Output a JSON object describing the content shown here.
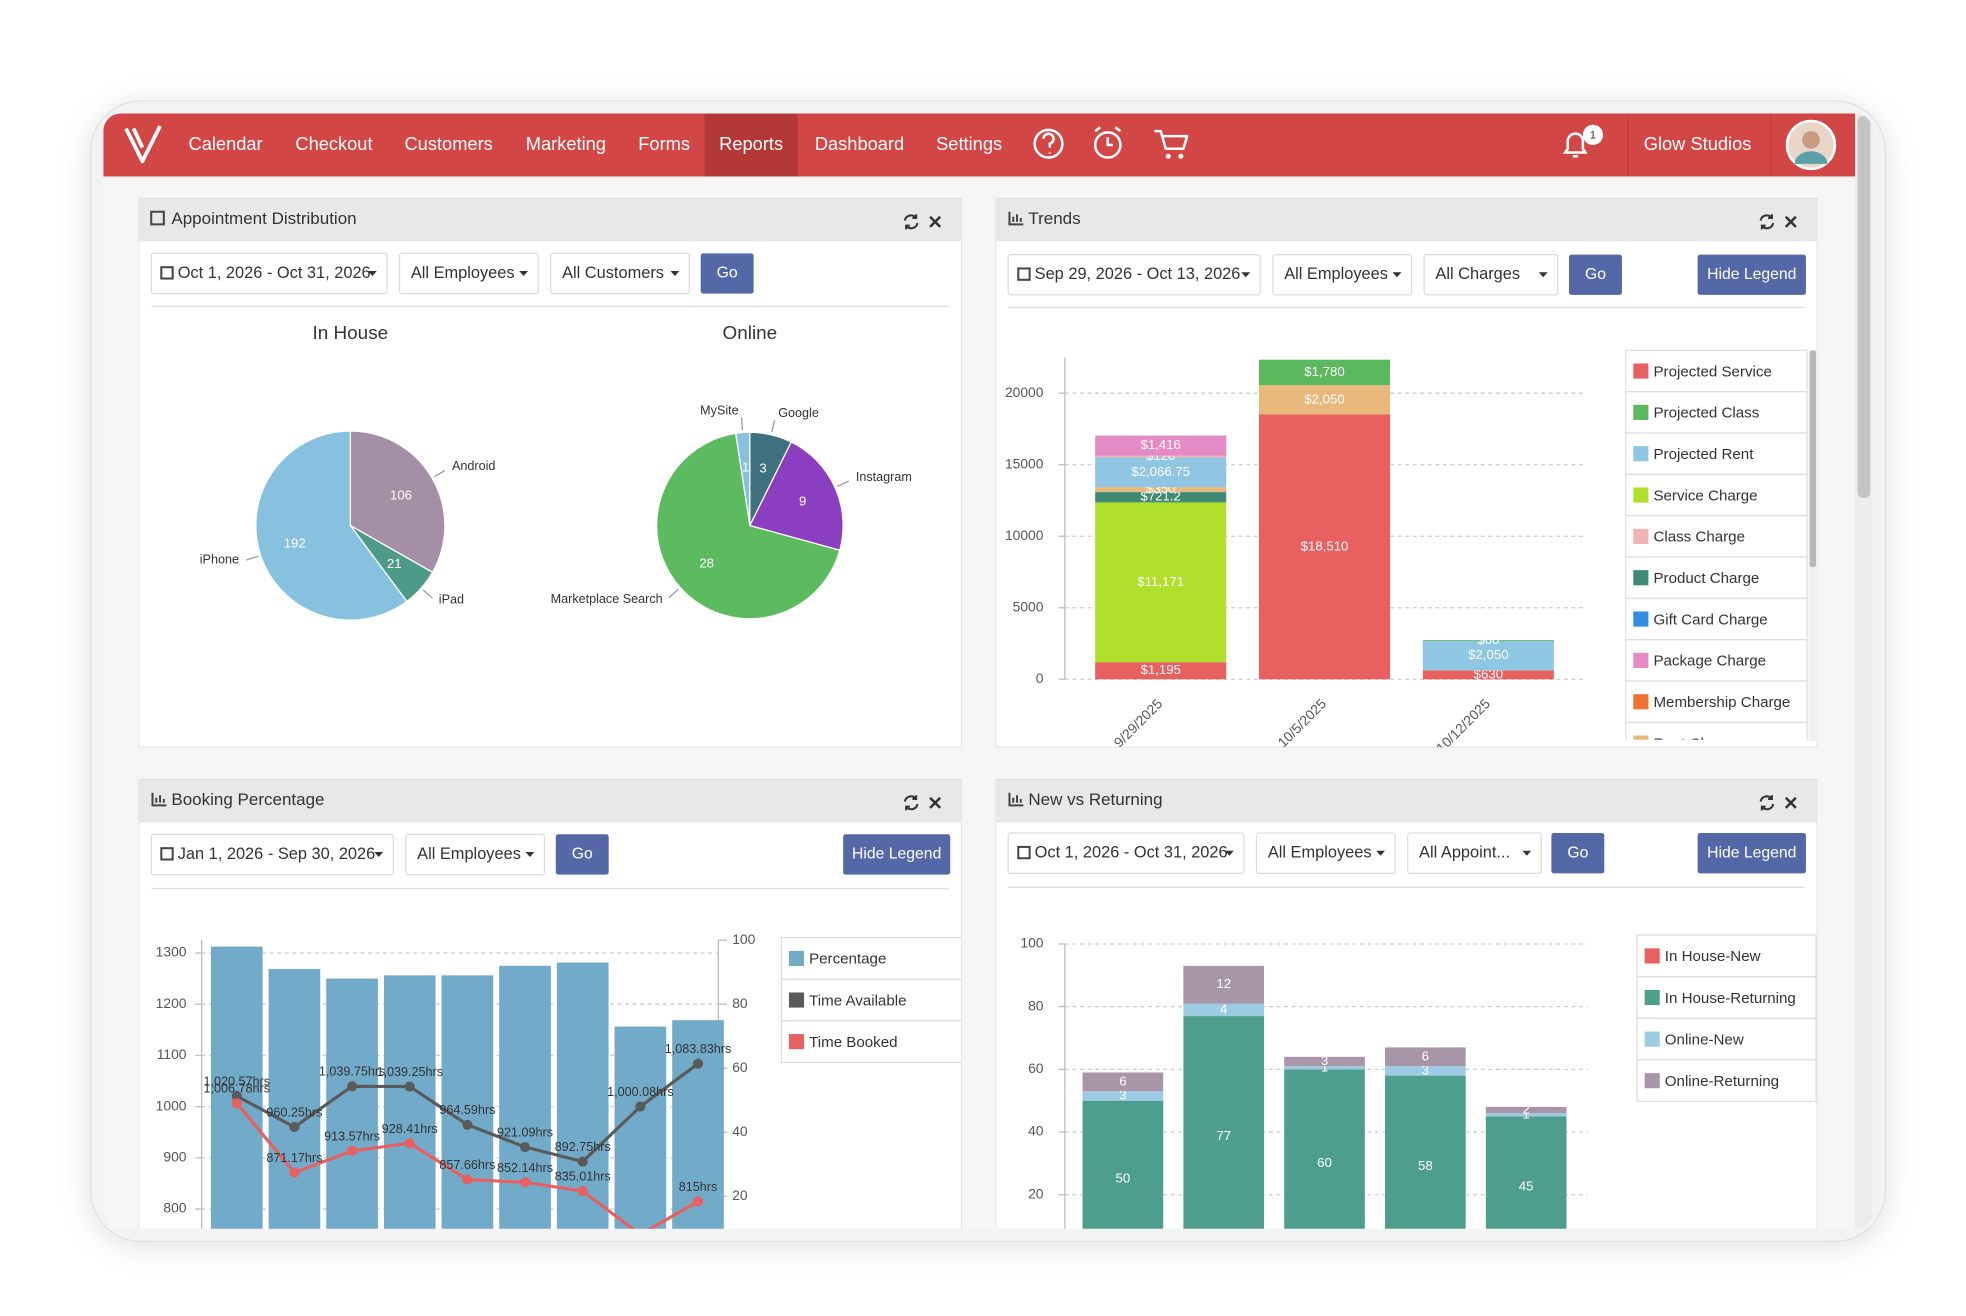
{
  "nav": {
    "items": [
      "Calendar",
      "Checkout",
      "Customers",
      "Marketing",
      "Forms",
      "Reports",
      "Dashboard",
      "Settings"
    ],
    "active": 5,
    "notifications": 1,
    "account": "Glow Studios"
  },
  "panels": [
    {
      "title": "Appointment Distribution",
      "filters": [
        "Oct 1, 2026 - Oct 31, 2026",
        "All Employees",
        "All Customers"
      ],
      "buttons": [
        "Go"
      ],
      "chart": {
        "type": "pie",
        "pies": [
          {
            "title": "In House",
            "categories": [
              "Android",
              "iPad",
              "iPhone"
            ],
            "values": [
              106,
              21,
              192
            ],
            "colors": [
              "#a48fa6",
              "#4d9a88",
              "#86c2df"
            ]
          },
          {
            "title": "Online",
            "categories": [
              "MySite",
              "Google",
              "Instagram",
              "Marketplace Search"
            ],
            "values": [
              1,
              3,
              9,
              28
            ],
            "colors": [
              "#86c2df",
              "#3e7080",
              "#8b3fc0",
              "#5cbb5f"
            ]
          }
        ]
      }
    },
    {
      "title": "Trends",
      "filters": [
        "Sep 29, 2026 - Oct 13, 2026",
        "All Employees",
        "All Charges"
      ],
      "buttons": [
        "Go",
        "Hide Legend"
      ],
      "chart": {
        "type": "stacked-bar",
        "categories": [
          "9/29/2025",
          "10/5/2025",
          "10/12/2025"
        ],
        "ylim": [
          0,
          22500
        ],
        "yticks": [
          0,
          5000,
          10000,
          15000,
          20000
        ],
        "grid": true,
        "series": [
          {
            "name": "Projected Service",
            "color": "#e8605f",
            "values": [
              1195,
              18510,
              630
            ],
            "value_labels": [
              "$1,195",
              "$18,510",
              "$630"
            ]
          },
          {
            "name": "Projected Class",
            "color": "#5cb85c",
            "values": [
              null,
              1780,
              60
            ],
            "value_labels": [
              null,
              "$1,780",
              "$60"
            ]
          },
          {
            "name": "Projected Rent",
            "color": "#8ec6e3",
            "values": [
              2066.75,
              null,
              2050
            ],
            "value_labels": [
              "$2,066.75",
              null,
              "$2,050"
            ]
          },
          {
            "name": "Service Charge",
            "color": "#b0e02c",
            "values": [
              11171,
              null,
              null
            ],
            "value_labels": [
              "$11,171",
              null,
              null
            ]
          },
          {
            "name": "Class Charge",
            "color": "#f0b2b2",
            "values": [
              120,
              null,
              null
            ],
            "value_labels": [
              "$120",
              null,
              null
            ]
          },
          {
            "name": "Product Charge",
            "color": "#3e8a76",
            "values": [
              721.2,
              null,
              null
            ],
            "value_labels": [
              "$721.2",
              null,
              null
            ]
          },
          {
            "name": "Gift Card Charge",
            "color": "#2f8de4",
            "values": [
              null,
              null,
              null
            ]
          },
          {
            "name": "Package Charge",
            "color": "#e48ac4",
            "values": [
              1416,
              null,
              null
            ],
            "value_labels": [
              "$1,416",
              null,
              null
            ]
          },
          {
            "name": "Membership Charge",
            "color": "#f0742f",
            "values": [
              null,
              null,
              null
            ]
          },
          {
            "name": "Rent Charge",
            "color": "#e9b87c",
            "values": [
              350,
              2050,
              null
            ],
            "value_labels": [
              "$350",
              "$2,050",
              null
            ]
          }
        ]
      }
    },
    {
      "title": "Booking Percentage",
      "filters": [
        "Jan 1, 2026 - Sep 30, 2026",
        "All Employees"
      ],
      "buttons": [
        "Go",
        "Hide Legend"
      ],
      "chart": {
        "type": "bar-line",
        "categories": [
          null,
          null,
          null,
          null,
          null,
          null,
          null,
          null,
          null
        ],
        "ylim": [
          700,
          1325
        ],
        "yticks": [
          800,
          900,
          1000,
          1100,
          1200,
          1300
        ],
        "y2lim": [
          0,
          100
        ],
        "y2ticks": [
          20,
          40,
          60,
          80,
          100
        ],
        "grid": true,
        "series": [
          {
            "name": "Percentage",
            "type": "bar",
            "axis": "y2",
            "color": "#72aac9",
            "values": [
              98,
              91,
              88,
              89,
              89,
              92,
              93,
              73,
              75
            ]
          },
          {
            "name": "Time Available",
            "type": "line",
            "color": "#5a5a5a",
            "values": [
              1020.57,
              960.25,
              1039.75,
              1039.25,
              964.59,
              921.09,
              892.75,
              1000.08,
              1083.83
            ],
            "value_labels": [
              "1,020.57hrs",
              "960.25hrs",
              "1,039.75hrs",
              "1,039.25hrs",
              "964.59hrs",
              "921.09hrs",
              "892.75hrs",
              "1,000.08hrs",
              "1,083.83hrs"
            ]
          },
          {
            "name": "Time Booked",
            "type": "line",
            "color": "#e8605f",
            "values": [
              1006.78,
              871.17,
              913.57,
              928.41,
              857.66,
              852.14,
              835.01,
              750,
              815
            ],
            "value_labels": [
              "1,006.78hrs",
              "871.17hrs",
              "913.57hrs",
              "928.41hrs",
              "857.66hrs",
              "852.14hrs",
              "835.01hrs",
              null,
              "815hrs"
            ]
          }
        ]
      }
    },
    {
      "title": "New vs Returning",
      "filters": [
        "Oct 1, 2026 - Oct 31, 2026",
        "All Employees",
        "All Appoint..."
      ],
      "buttons": [
        "Go",
        "Hide Legend"
      ],
      "chart": {
        "type": "stacked-bar",
        "categories": [
          null,
          null,
          null,
          null,
          null
        ],
        "ylim": [
          0,
          100
        ],
        "yticks": [
          20,
          40,
          60,
          80,
          100
        ],
        "grid": true,
        "series": [
          {
            "name": "In House-New",
            "color": "#e8605f",
            "values": [
              null,
              null,
              null,
              null,
              null
            ]
          },
          {
            "name": "In House-Returning",
            "color": "#4e9e8e",
            "values": [
              50,
              77,
              60,
              58,
              45
            ]
          },
          {
            "name": "Online-New",
            "color": "#9ccbe3",
            "values": [
              3,
              4,
              1,
              3,
              1
            ]
          },
          {
            "name": "Online-Returning",
            "color": "#a895a8",
            "values": [
              6,
              12,
              3,
              6,
              2
            ]
          }
        ]
      }
    }
  ]
}
